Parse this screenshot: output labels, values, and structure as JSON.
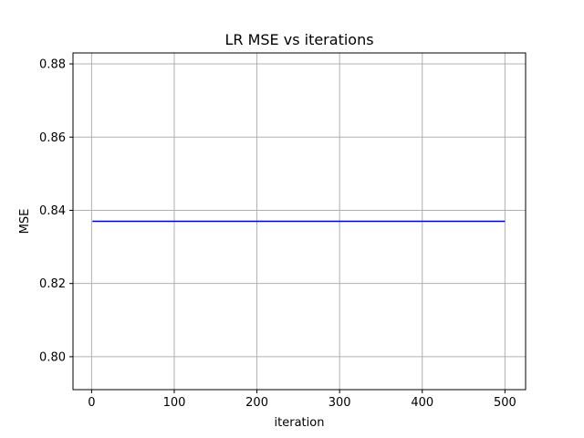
{
  "chart_data": {
    "type": "line",
    "title": "LR MSE vs iterations",
    "xlabel": "iteration",
    "ylabel": "MSE",
    "xlim": [
      -22.5,
      525
    ],
    "ylim": [
      0.791,
      0.883
    ],
    "xticks": [
      0,
      100,
      200,
      300,
      400,
      500
    ],
    "xtick_labels": [
      "0",
      "100",
      "200",
      "300",
      "400",
      "500"
    ],
    "yticks": [
      0.8,
      0.82,
      0.84,
      0.86,
      0.88
    ],
    "ytick_labels": [
      "0.80",
      "0.82",
      "0.84",
      "0.86",
      "0.88"
    ],
    "grid": true,
    "series": [
      {
        "color": "#0000cc",
        "x": [
          1,
          500
        ],
        "y": [
          0.837,
          0.837
        ]
      }
    ]
  }
}
